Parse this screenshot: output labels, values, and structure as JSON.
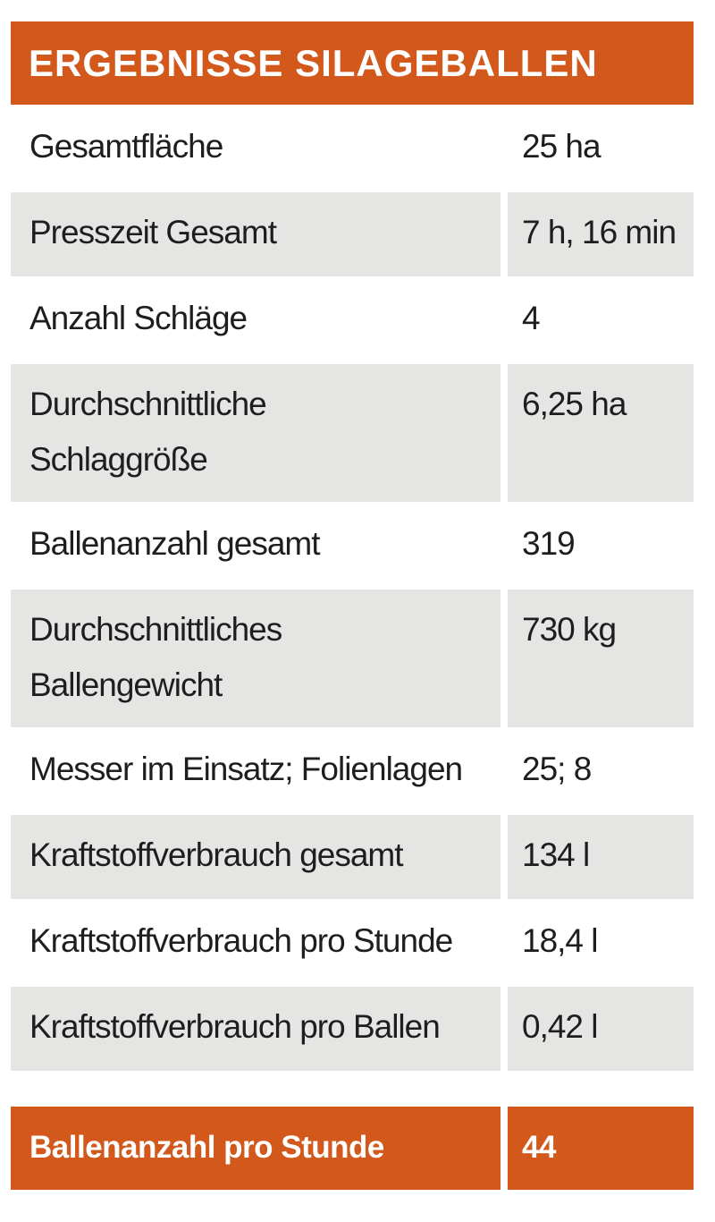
{
  "title": "ERGEBNISSE SILAGEBALLEN",
  "rows": [
    {
      "label": "Gesamtfläche",
      "value": "25 ha"
    },
    {
      "label": "Presszeit Gesamt",
      "value": "7 h, 16 min"
    },
    {
      "label": "Anzahl Schläge",
      "value": "4"
    },
    {
      "label": "Durchschnittliche\nSchlaggröße",
      "value": "6,25 ha"
    },
    {
      "label": "Ballenanzahl gesamt",
      "value": "319"
    },
    {
      "label": "Durchschnittliches\nBallengewicht",
      "value": "730 kg"
    },
    {
      "label": "Messer im Einsatz; Folienlagen",
      "value": "25; 8"
    },
    {
      "label": "Kraftstoffverbrauch gesamt",
      "value": "134 l"
    },
    {
      "label": "Kraftstoffverbrauch pro Stunde",
      "value": "18,4 l"
    },
    {
      "label": "Kraftstoffverbrauch pro Ballen",
      "value": "0,42 l"
    }
  ],
  "total": {
    "label": "Ballenanzahl pro Stunde",
    "value": "44"
  },
  "colors": {
    "accent": "#d2591b",
    "row_shade": "#e5e5e3"
  }
}
